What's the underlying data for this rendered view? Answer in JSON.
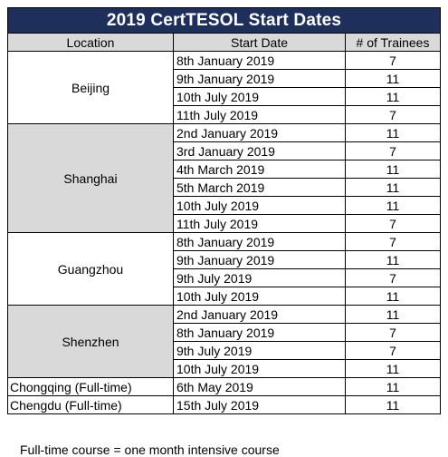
{
  "title": "2019 CertTESOL Start Dates",
  "headers": {
    "location": "Location",
    "start_date": "Start Date",
    "trainees": "# of Trainees"
  },
  "groups": [
    {
      "location": "Beijing",
      "shaded": false,
      "rows": [
        {
          "date": "8th January 2019",
          "trainees": "7"
        },
        {
          "date": "9th January 2019",
          "trainees": "11"
        },
        {
          "date": "10th July 2019",
          "trainees": "11"
        },
        {
          "date": "11th July 2019",
          "trainees": "7"
        }
      ]
    },
    {
      "location": "Shanghai",
      "shaded": true,
      "rows": [
        {
          "date": "2nd January 2019",
          "trainees": "11"
        },
        {
          "date": "3rd January 2019",
          "trainees": "7"
        },
        {
          "date": "4th March 2019",
          "trainees": "11"
        },
        {
          "date": "5th March 2019",
          "trainees": "11"
        },
        {
          "date": "10th July 2019",
          "trainees": "11"
        },
        {
          "date": "11th July 2019",
          "trainees": "7"
        }
      ]
    },
    {
      "location": "Guangzhou",
      "shaded": false,
      "rows": [
        {
          "date": "8th January 2019",
          "trainees": "7"
        },
        {
          "date": "9th January 2019",
          "trainees": "11"
        },
        {
          "date": "9th July 2019",
          "trainees": "7"
        },
        {
          "date": "10th July 2019",
          "trainees": "11"
        }
      ]
    },
    {
      "location": "Shenzhen",
      "shaded": true,
      "rows": [
        {
          "date": "2nd January 2019",
          "trainees": "11"
        },
        {
          "date": "8th January 2019",
          "trainees": "7"
        },
        {
          "date": "9th July 2019",
          "trainees": "7"
        },
        {
          "date": "10th July 2019",
          "trainees": "11"
        }
      ]
    },
    {
      "location": "Chongqing (Full-time)",
      "shaded": false,
      "rows": [
        {
          "date": "6th May 2019",
          "trainees": "11"
        }
      ]
    },
    {
      "location": "Chengdu (Full-time)",
      "shaded": false,
      "rows": [
        {
          "date": "15th July 2019",
          "trainees": "11"
        }
      ]
    }
  ],
  "footnote": "Full-time course = one month intensive course"
}
